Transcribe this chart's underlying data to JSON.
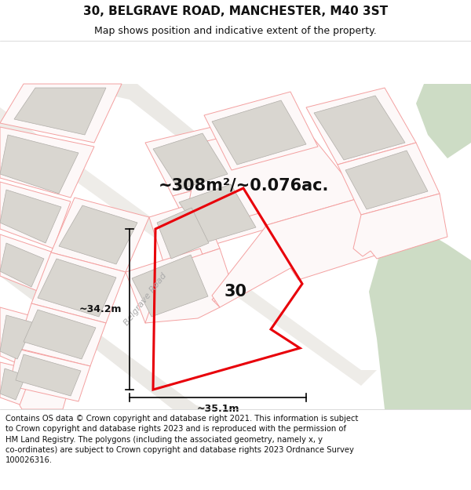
{
  "title_line1": "30, BELGRAVE ROAD, MANCHESTER, M40 3ST",
  "title_line2": "Map shows position and indicative extent of the property.",
  "area_label": "~308m²/~0.076ac.",
  "property_number": "30",
  "dim_width": "~35.1m",
  "dim_height": "~34.2m",
  "road_label": "Belgrave Road",
  "footer_text": "Contains OS data © Crown copyright and database right 2021. This information is subject to Crown copyright and database rights 2023 and is reproduced with the permission of HM Land Registry. The polygons (including the associated geometry, namely x, y co-ordinates) are subject to Crown copyright and database rights 2023 Ordnance Survey 100026316.",
  "map_bg": "#f5f3ef",
  "building_fill": "#d9d6d0",
  "building_edge": "#b0ada8",
  "green_fill": "#cddcc5",
  "green_edge": "none",
  "road_fill": "#ffffff",
  "parcel_edge": "#f4a0a0",
  "parcel_fill": "#fdf8f8",
  "property_edge": "#e8000a",
  "property_lw": 2.2,
  "header_bg": "#ffffff",
  "footer_bg": "#ffffff",
  "title_fontsize": 11,
  "subtitle_fontsize": 9,
  "area_fontsize": 15,
  "number_fontsize": 15,
  "dim_fontsize": 9,
  "road_label_fontsize": 8,
  "footer_fontsize": 7.2
}
